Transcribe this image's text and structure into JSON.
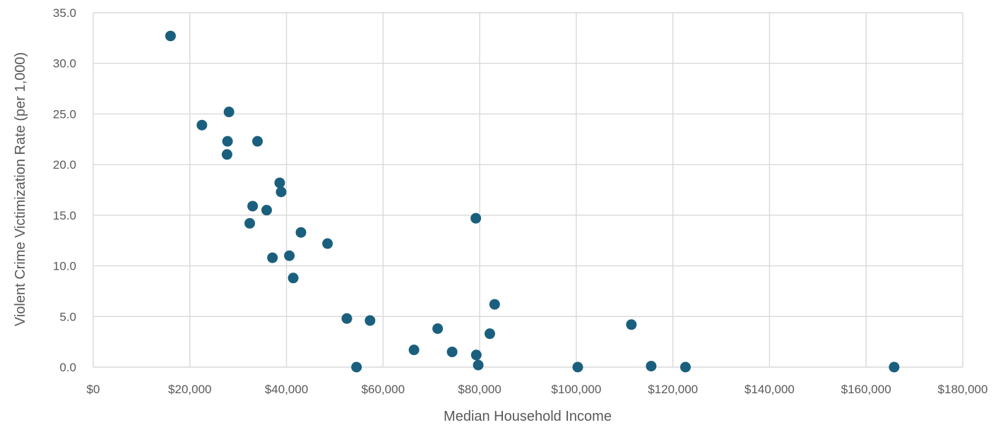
{
  "chart_data": {
    "type": "scatter",
    "title": "",
    "xlabel": "Median Household Income",
    "ylabel": "Violent Crime Victimization Rate (per 1,000)",
    "xlim": [
      0,
      180000
    ],
    "ylim": [
      0,
      35
    ],
    "x_ticks": [
      0,
      20000,
      40000,
      60000,
      80000,
      100000,
      120000,
      140000,
      160000,
      180000
    ],
    "x_tick_labels": [
      "$0",
      "$20,000",
      "$40,000",
      "$60,000",
      "$80,000",
      "$100,000",
      "$120,000",
      "$140,000",
      "$160,000",
      "$180,000"
    ],
    "y_ticks": [
      0,
      5,
      10,
      15,
      20,
      25,
      30,
      35
    ],
    "y_tick_labels": [
      "0.0",
      "5.0",
      "10.0",
      "15.0",
      "20.0",
      "25.0",
      "30.0",
      "35.0"
    ],
    "grid": true,
    "legend": "none",
    "point_color": "#1b5f7e",
    "points": [
      {
        "x": 16000,
        "y": 32.7
      },
      {
        "x": 22500,
        "y": 23.9
      },
      {
        "x": 27800,
        "y": 22.3
      },
      {
        "x": 28100,
        "y": 25.2
      },
      {
        "x": 27700,
        "y": 21.0
      },
      {
        "x": 34000,
        "y": 22.3
      },
      {
        "x": 38600,
        "y": 18.2
      },
      {
        "x": 38900,
        "y": 17.3
      },
      {
        "x": 33000,
        "y": 15.9
      },
      {
        "x": 35900,
        "y": 15.5
      },
      {
        "x": 32400,
        "y": 14.2
      },
      {
        "x": 43000,
        "y": 13.3
      },
      {
        "x": 48500,
        "y": 12.2
      },
      {
        "x": 37100,
        "y": 10.8
      },
      {
        "x": 40600,
        "y": 11.0
      },
      {
        "x": 41400,
        "y": 8.8
      },
      {
        "x": 52500,
        "y": 4.8
      },
      {
        "x": 57300,
        "y": 4.6
      },
      {
        "x": 54500,
        "y": 0.0
      },
      {
        "x": 66400,
        "y": 1.7
      },
      {
        "x": 71300,
        "y": 3.8
      },
      {
        "x": 74300,
        "y": 1.5
      },
      {
        "x": 79200,
        "y": 14.7
      },
      {
        "x": 79300,
        "y": 1.2
      },
      {
        "x": 79700,
        "y": 0.2
      },
      {
        "x": 82100,
        "y": 3.3
      },
      {
        "x": 83100,
        "y": 6.2
      },
      {
        "x": 100300,
        "y": 0.0
      },
      {
        "x": 111400,
        "y": 4.2
      },
      {
        "x": 115500,
        "y": 0.1
      },
      {
        "x": 122600,
        "y": 0.0
      },
      {
        "x": 165800,
        "y": 0.0
      }
    ]
  }
}
